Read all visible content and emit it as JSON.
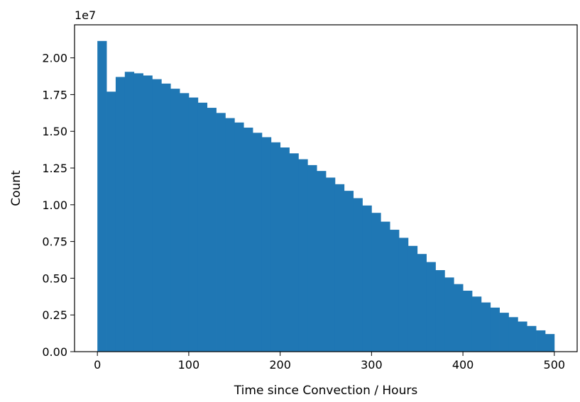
{
  "chart_data": {
    "type": "bar",
    "subtype": "histogram",
    "xlabel": "Time since Convection / Hours",
    "ylabel": "Count",
    "y_offset_label": "1e7",
    "xlim": [
      -25,
      525
    ],
    "ylim": [
      0,
      22250000
    ],
    "x_ticks": [
      0,
      100,
      200,
      300,
      400,
      500
    ],
    "y_ticks": [
      0.0,
      0.25,
      0.5,
      0.75,
      1.0,
      1.25,
      1.5,
      1.75,
      2.0
    ],
    "y_tick_labels": [
      "0.00",
      "0.25",
      "0.50",
      "0.75",
      "1.00",
      "1.25",
      "1.50",
      "1.75",
      "2.00"
    ],
    "bin_edges": [
      0,
      10,
      20,
      30,
      40,
      50,
      60,
      70,
      80,
      90,
      100,
      110,
      120,
      130,
      140,
      150,
      160,
      170,
      180,
      190,
      200,
      210,
      220,
      230,
      240,
      250,
      260,
      270,
      280,
      290,
      300,
      310,
      320,
      330,
      340,
      350,
      360,
      370,
      380,
      390,
      400,
      410,
      420,
      430,
      440,
      450,
      460,
      470,
      480,
      490,
      500
    ],
    "values": [
      21150000,
      17700000,
      18700000,
      19050000,
      18950000,
      18800000,
      18550000,
      18250000,
      17900000,
      17600000,
      17300000,
      16950000,
      16600000,
      16250000,
      15900000,
      15600000,
      15250000,
      14900000,
      14600000,
      14250000,
      13900000,
      13500000,
      13100000,
      12700000,
      12300000,
      11850000,
      11400000,
      10950000,
      10450000,
      9950000,
      9450000,
      8850000,
      8300000,
      7750000,
      7200000,
      6650000,
      6100000,
      5550000,
      5050000,
      4600000,
      4150000,
      3750000,
      3350000,
      3000000,
      2650000,
      2350000,
      2050000,
      1750000,
      1450000,
      1200000
    ],
    "bar_color": "#1f77b4"
  }
}
